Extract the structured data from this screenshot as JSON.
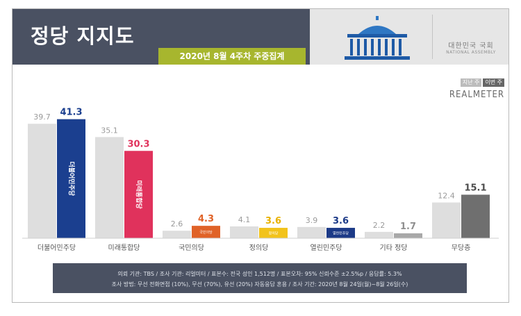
{
  "header": {
    "title": "정당 지지도",
    "subtitle": "2020년 8월 4주차 주중집계",
    "assembly_name": "대한민국 국회",
    "assembly_name_en": "NATIONAL ASSEMBLY"
  },
  "legend": {
    "prev": "지난 주",
    "curr": "이번 주"
  },
  "brand": "REALMETER",
  "chart_data": {
    "type": "bar",
    "categories": [
      "더불어민주당",
      "미래통합당",
      "국민의당",
      "정의당",
      "열린민주당",
      "기타 정당",
      "무당층"
    ],
    "series": [
      {
        "name": "지난 주",
        "values": [
          39.7,
          35.1,
          2.6,
          4.1,
          3.9,
          2.2,
          12.4
        ]
      },
      {
        "name": "이번 주",
        "values": [
          41.3,
          30.3,
          4.3,
          3.6,
          3.6,
          1.7,
          15.1
        ]
      }
    ],
    "bar_labels": [
      "더불어민주당",
      "미래통합당",
      "국민의당",
      "정의당",
      "열린민주당",
      "",
      ""
    ],
    "colors": {
      "prev": "#dedede",
      "curr": [
        "#1b3f8f",
        "#e0325c",
        "#e06227",
        "#f2c31b",
        "#1c3a87",
        "#a8a8a8",
        "#6f6f6f"
      ],
      "curr_label": [
        "#1b3f8f",
        "#e0325c",
        "#e06227",
        "#e8b100",
        "#1c3a87",
        "#8f8f8f",
        "#4d4d4d"
      ]
    },
    "ylim": [
      0,
      45
    ],
    "grid": false
  },
  "footer": {
    "line1": "의뢰 기관: TBS / 조사 기관: 리얼미터 / 표본수: 전국 성인 1,512명 / 표본오차: 95% 신뢰수준 ±2.5%p / 응답률: 5.3%",
    "line2": "조사 방법: 무선 전화면접 (10%), 무선 (70%), 유선 (20%) 자동응답 혼용 / 조사 기간: 2020년 8월 24일(월)~8월 26일(수)"
  }
}
